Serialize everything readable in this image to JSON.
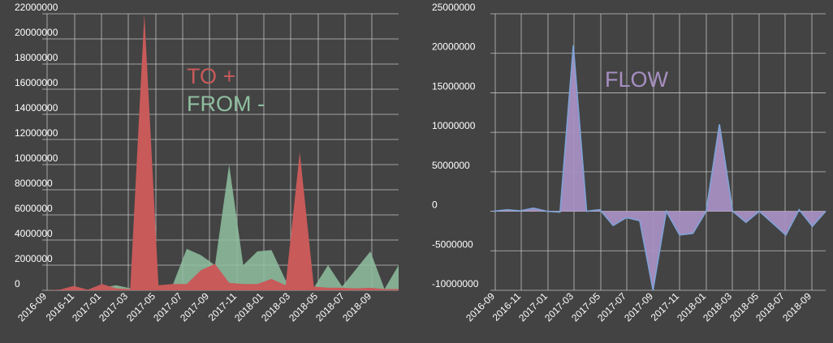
{
  "colors": {
    "background": "#434343",
    "to_fill": "#c85a5a",
    "from_fill": "#8fbfa0",
    "flow_fill": "#a78fc2",
    "flow_line": "#7fa2d6",
    "text": "#ffffff",
    "grid": "#d6d6d6"
  },
  "chart_data": [
    {
      "type": "area",
      "title": "",
      "annotations": [
        {
          "text": "TO +",
          "color": "#c85a5a",
          "series": "TO"
        },
        {
          "text": "FROM -",
          "color": "#8fbfa0",
          "series": "FROM"
        }
      ],
      "x": [
        "2016-08",
        "2016-09",
        "2016-10",
        "2016-11",
        "2016-12",
        "2017-01",
        "2017-02",
        "2017-03",
        "2017-04",
        "2017-05",
        "2017-06",
        "2017-07",
        "2017-08",
        "2017-09",
        "2017-10",
        "2017-11",
        "2017-12",
        "2018-01",
        "2018-02",
        "2018-03",
        "2018-04",
        "2018-05",
        "2018-06",
        "2018-07",
        "2018-08",
        "2018-09"
      ],
      "xticks": [
        "2016-09",
        "2016-11",
        "2017-01",
        "2017-03",
        "2017-05",
        "2017-07",
        "2017-09",
        "2017-11",
        "2018-01",
        "2018-03",
        "2018-05",
        "2018-07",
        "2018-09"
      ],
      "series": [
        {
          "key": "FROM",
          "values": [
            0,
            50000,
            150000,
            50000,
            200000,
            400000,
            150000,
            400000,
            300000,
            400000,
            3300000,
            2800000,
            2000000,
            10000000,
            2000000,
            3100000,
            3200000,
            800000,
            600000,
            200000,
            2000000,
            300000,
            1700000,
            3100000,
            100000,
            2000000
          ]
        },
        {
          "key": "TO",
          "values": [
            0,
            50000,
            350000,
            50000,
            500000,
            150000,
            100000,
            22000000,
            400000,
            500000,
            500000,
            1600000,
            2100000,
            600000,
            500000,
            500000,
            900000,
            400000,
            11000000,
            300000,
            200000,
            200000,
            150000,
            200000,
            100000,
            100000
          ]
        }
      ],
      "yticks": [
        0,
        2000000,
        4000000,
        6000000,
        8000000,
        10000000,
        12000000,
        14000000,
        16000000,
        18000000,
        20000000,
        22000000
      ],
      "ylim": [
        0,
        22000000
      ],
      "grid": true
    },
    {
      "type": "area",
      "title": "",
      "annotations": [
        {
          "text": "FLOW",
          "color": "#a78fc2",
          "series": "FLOW"
        }
      ],
      "x": [
        "2016-08",
        "2016-09",
        "2016-10",
        "2016-11",
        "2016-12",
        "2017-01",
        "2017-02",
        "2017-03",
        "2017-04",
        "2017-05",
        "2017-06",
        "2017-07",
        "2017-08",
        "2017-09",
        "2017-10",
        "2017-11",
        "2017-12",
        "2018-01",
        "2018-02",
        "2018-03",
        "2018-04",
        "2018-05",
        "2018-06",
        "2018-07",
        "2018-08",
        "2018-09"
      ],
      "xticks": [
        "2016-09",
        "2016-11",
        "2017-01",
        "2017-03",
        "2017-05",
        "2017-07",
        "2017-09",
        "2017-11",
        "2018-01",
        "2018-03",
        "2018-05",
        "2018-07",
        "2018-09"
      ],
      "series": [
        {
          "key": "FLOW",
          "values": [
            0,
            200000,
            50000,
            400000,
            0,
            -100000,
            21000000,
            0,
            200000,
            -1800000,
            -800000,
            -1200000,
            -10000000,
            0,
            -3000000,
            -2800000,
            0,
            11000000,
            0,
            -1400000,
            0,
            -1500000,
            -3000000,
            200000,
            -1900000,
            0
          ]
        }
      ],
      "yticks": [
        -10000000,
        -5000000,
        0,
        5000000,
        10000000,
        15000000,
        20000000,
        25000000
      ],
      "ylim": [
        -10000000,
        25000000
      ],
      "grid": true
    }
  ]
}
